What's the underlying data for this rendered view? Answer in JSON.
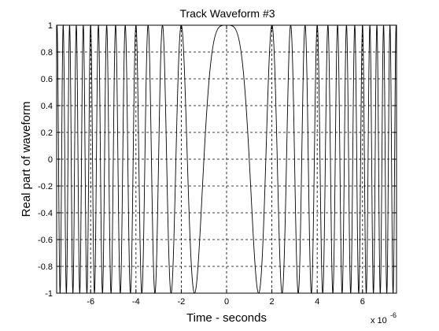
{
  "chart_data": {
    "type": "line",
    "title": "Track Waveform #3",
    "xlabel": "Time - seconds",
    "ylabel": "Real part of waveform",
    "x_exponent_label": "x 10",
    "x_exponent_power": "-6",
    "xlim": [
      -7.5,
      7.5
    ],
    "ylim": [
      -1,
      1
    ],
    "x_ticks": [
      -6,
      -4,
      -2,
      0,
      2,
      4,
      6
    ],
    "y_ticks": [
      -1,
      -0.8,
      -0.6,
      -0.4,
      -0.2,
      0,
      0.2,
      0.4,
      0.6,
      0.8,
      1
    ],
    "grid": true,
    "series": [
      {
        "color": "#000000",
        "function": "cos(pi*k*t^2)",
        "chirp_rate_k": 0.5,
        "description_units": "x in microseconds (scaled by 1e-6 per axis multiplier)"
      }
    ]
  }
}
